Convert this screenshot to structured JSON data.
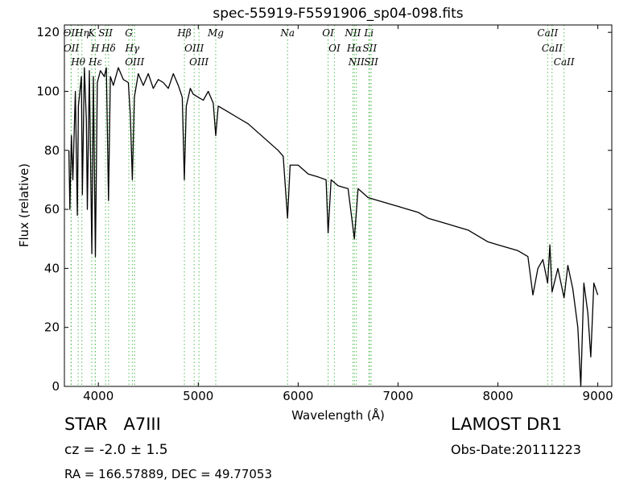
{
  "chart_data": {
    "type": "line",
    "title": "spec-55919-F5591906_sp04-098.fits",
    "x_label": "Wavelength (Å)",
    "y_label": "Flux (relative)",
    "xlim": [
      3660,
      9140
    ],
    "ylim": [
      0,
      122.5
    ],
    "xticks": [
      4000,
      5000,
      6000,
      7000,
      8000,
      9000
    ],
    "yticks": [
      0,
      20,
      40,
      60,
      80,
      100,
      120
    ],
    "color": "#000000",
    "line_color": "#55bb55",
    "x": [
      3705,
      3715,
      3730,
      3745,
      3770,
      3790,
      3800,
      3830,
      3840,
      3860,
      3880,
      3890,
      3910,
      3935,
      3950,
      3970,
      3990,
      4020,
      4060,
      4080,
      4102,
      4120,
      4150,
      4200,
      4250,
      4300,
      4320,
      4340,
      4360,
      4400,
      4450,
      4500,
      4550,
      4600,
      4650,
      4700,
      4750,
      4800,
      4840,
      4861,
      4880,
      4920,
      4950,
      5000,
      5050,
      5100,
      5150,
      5175,
      5200,
      5300,
      5400,
      5500,
      5600,
      5700,
      5800,
      5850,
      5894,
      5920,
      6000,
      6100,
      6200,
      6280,
      6300,
      6330,
      6400,
      6500,
      6563,
      6600,
      6700,
      6800,
      6900,
      7000,
      7100,
      7200,
      7300,
      7400,
      7500,
      7600,
      7700,
      7800,
      7900,
      8000,
      8100,
      8200,
      8300,
      8350,
      8400,
      8450,
      8498,
      8520,
      8542,
      8600,
      8662,
      8700,
      8750,
      8800,
      8830,
      8860,
      8900,
      8930,
      8960,
      9000
    ],
    "values": [
      80,
      60,
      85,
      70,
      100,
      58,
      95,
      105,
      65,
      108,
      90,
      60,
      107,
      45,
      105,
      44,
      103,
      107,
      105,
      108,
      63,
      105,
      102,
      108,
      104,
      103,
      92,
      70,
      98,
      106,
      102,
      106,
      101,
      104,
      103,
      101,
      106,
      102,
      98,
      70,
      95,
      101,
      99,
      98,
      97,
      100,
      96,
      85,
      95,
      93,
      91,
      89,
      86,
      83,
      80,
      78,
      57,
      75,
      75,
      72,
      71,
      70,
      52,
      70,
      68,
      67,
      50,
      67,
      64,
      63,
      62,
      61,
      60,
      59,
      57,
      56,
      55,
      54,
      53,
      51,
      49,
      48,
      47,
      46,
      44,
      31,
      40,
      43,
      35,
      48,
      32,
      40,
      30,
      41,
      33,
      20,
      0,
      35,
      25,
      10,
      35,
      31
    ],
    "lines": [
      {
        "wavelength": 3726,
        "label": "OII"
      },
      {
        "wavelength": 3729,
        "label": "OII"
      },
      {
        "wavelength": 3798,
        "label": "Hθ"
      },
      {
        "wavelength": 3835,
        "label": "Hη"
      },
      {
        "wavelength": 3934,
        "label": "K"
      },
      {
        "wavelength": 3968,
        "label": "H"
      },
      {
        "wavelength": 3970,
        "label": "Hε"
      },
      {
        "wavelength": 4072,
        "label": "SII"
      },
      {
        "wavelength": 4102,
        "label": "Hδ"
      },
      {
        "wavelength": 4305,
        "label": "G"
      },
      {
        "wavelength": 4340,
        "label": "Hγ"
      },
      {
        "wavelength": 4363,
        "label": "OIII"
      },
      {
        "wavelength": 4861,
        "label": "Hβ"
      },
      {
        "wavelength": 4959,
        "label": "OIII"
      },
      {
        "wavelength": 5007,
        "label": "OIII"
      },
      {
        "wavelength": 5175,
        "label": "Mg"
      },
      {
        "wavelength": 5894,
        "label": "Na"
      },
      {
        "wavelength": 6300,
        "label": "OI"
      },
      {
        "wavelength": 6363,
        "label": "OI"
      },
      {
        "wavelength": 6548,
        "label": "NII"
      },
      {
        "wavelength": 6563,
        "label": "Hα"
      },
      {
        "wavelength": 6583,
        "label": "NII"
      },
      {
        "wavelength": 6708,
        "label": "Li"
      },
      {
        "wavelength": 6716,
        "label": "SII"
      },
      {
        "wavelength": 6731,
        "label": "SII"
      },
      {
        "wavelength": 8498,
        "label": "CaII"
      },
      {
        "wavelength": 8542,
        "label": "CaII"
      },
      {
        "wavelength": 8662,
        "label": "CaII"
      }
    ]
  },
  "info": {
    "object": "STAR   A7III",
    "survey": "LAMOST DR1",
    "redshift": "cz = -2.0 ± 1.5",
    "obs_date": "Obs-Date:20111223",
    "coords": "RA = 166.57889, DEC = 49.77053"
  }
}
